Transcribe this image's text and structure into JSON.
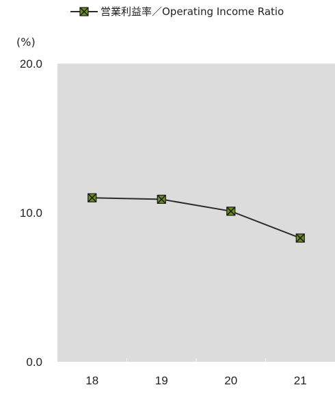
{
  "chart_data": {
    "type": "line",
    "categories": [
      "18",
      "19",
      "20",
      "21"
    ],
    "series": [
      {
        "name": "営業利益率／Operating Income Ratio",
        "values": [
          11.0,
          10.9,
          10.1,
          8.3
        ],
        "line_color": "#2b2b2b",
        "marker_fill": "#6b8e23",
        "marker_edge": "#1a1a1a"
      }
    ],
    "unit_label": "(%)",
    "ylim": [
      0,
      20
    ],
    "yticks": [
      "0.0",
      "10.0",
      "20.0"
    ],
    "ytick_values": [
      0,
      10,
      20
    ],
    "plot_background": "#dcdcdc",
    "grid": false,
    "legend_position": "top-right"
  }
}
